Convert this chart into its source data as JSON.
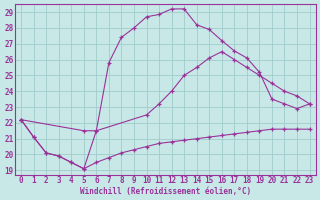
{
  "bg_color": "#c8e8e8",
  "grid_color": "#a0cccc",
  "line_color": "#993399",
  "xlabel": "Windchill (Refroidissement éolien,°C)",
  "xlim_min": -0.5,
  "xlim_max": 23.5,
  "ylim_min": 18.7,
  "ylim_max": 29.5,
  "xticks": [
    0,
    1,
    2,
    3,
    4,
    5,
    6,
    7,
    8,
    9,
    10,
    11,
    12,
    13,
    14,
    15,
    16,
    17,
    18,
    19,
    20,
    21,
    22,
    23
  ],
  "yticks": [
    19,
    20,
    21,
    22,
    23,
    24,
    25,
    26,
    27,
    28,
    29
  ],
  "line1_x": [
    0,
    1,
    2,
    3,
    4,
    5,
    6,
    7,
    8,
    9,
    10,
    11,
    12,
    13,
    14,
    15,
    16,
    17,
    18,
    19,
    20,
    21,
    22,
    23
  ],
  "line1_y": [
    22.2,
    21.1,
    20.1,
    19.9,
    19.5,
    19.1,
    21.5,
    25.8,
    27.4,
    28.0,
    28.7,
    28.85,
    29.2,
    29.2,
    28.2,
    27.9,
    27.2,
    26.55,
    26.1,
    25.2,
    23.5,
    23.2,
    22.9,
    23.2
  ],
  "line2_x": [
    0,
    5,
    6,
    10,
    11,
    12,
    13,
    14,
    15,
    16,
    17,
    18,
    19,
    20,
    21,
    22,
    23
  ],
  "line2_y": [
    22.2,
    21.5,
    21.5,
    22.5,
    23.2,
    24.0,
    25.0,
    25.5,
    26.1,
    26.5,
    26.0,
    25.5,
    25.0,
    24.5,
    24.0,
    23.7,
    23.2
  ],
  "line3_x": [
    0,
    1,
    2,
    3,
    4,
    5,
    6,
    7,
    8,
    9,
    10,
    11,
    12,
    13,
    14,
    15,
    16,
    17,
    18,
    19,
    20,
    21,
    22,
    23
  ],
  "line3_y": [
    22.2,
    21.1,
    20.1,
    19.9,
    19.5,
    19.1,
    19.5,
    19.8,
    20.1,
    20.3,
    20.5,
    20.7,
    20.8,
    20.9,
    21.0,
    21.1,
    21.2,
    21.3,
    21.4,
    21.5,
    21.6,
    21.6,
    21.6,
    21.6
  ]
}
